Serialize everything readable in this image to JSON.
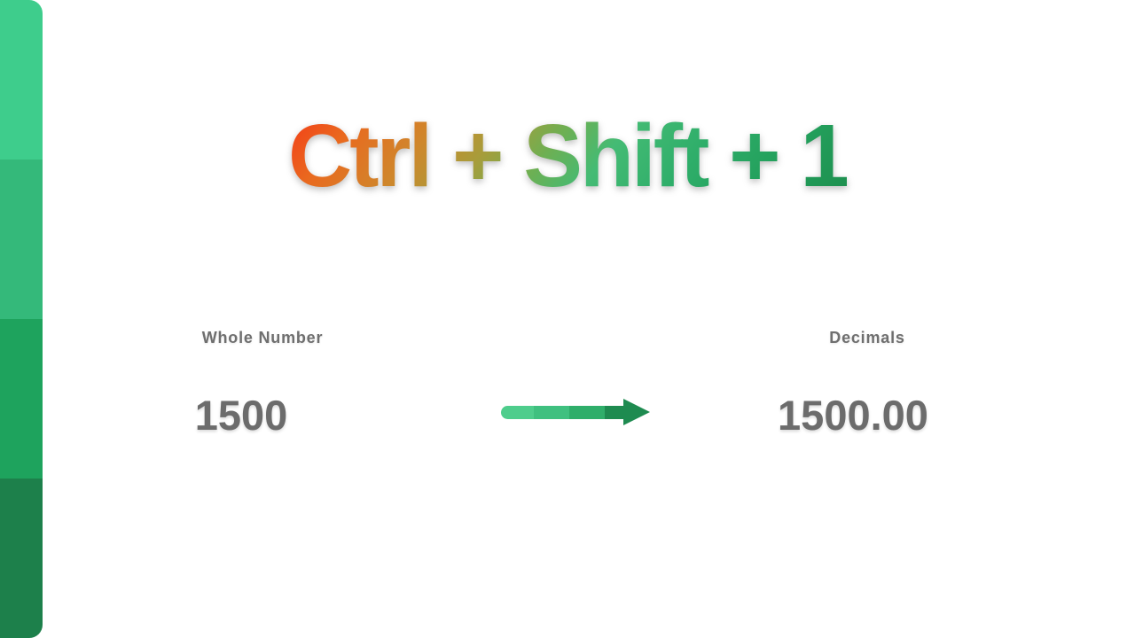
{
  "slide": {
    "title": "Ctrl + Shift + 1",
    "before": {
      "label": "Whole Number",
      "value": "1500"
    },
    "after": {
      "label": "Decimals",
      "value": "1500.00"
    },
    "colors": {
      "accent_bar_segments": [
        "#3ecd8c",
        "#34b97a",
        "#1ea35d",
        "#1d804b"
      ],
      "arrow_segments": [
        "#4ecd8c",
        "#3fc07f",
        "#2fae6a",
        "#1e8b50"
      ],
      "arrow_head": "#1e8b50",
      "label_text": "#6f6f6f",
      "value_text": "#6c6c6c",
      "title_gradient_start": "#f43a17",
      "title_gradient_mid": "#a89c3a",
      "title_gradient_end": "#1e8f4f"
    }
  }
}
